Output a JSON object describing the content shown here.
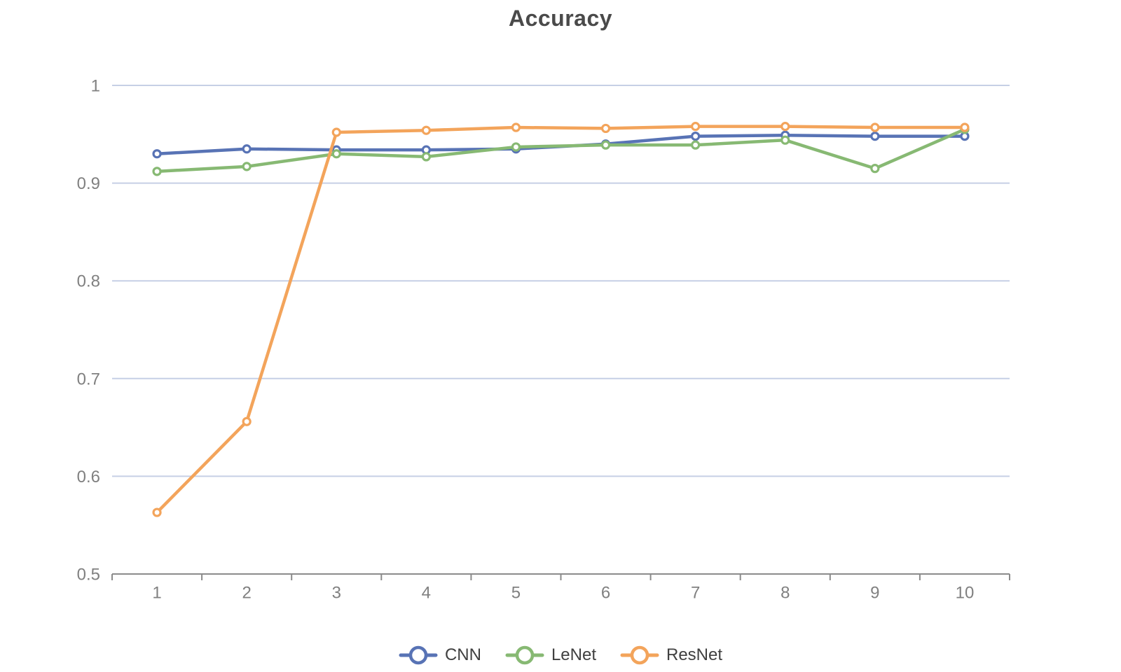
{
  "title": "Accuracy",
  "chart_data": {
    "type": "line",
    "title": "Accuracy",
    "xlabel": "",
    "ylabel": "",
    "categories": [
      "1",
      "2",
      "3",
      "4",
      "5",
      "6",
      "7",
      "8",
      "9",
      "10"
    ],
    "series": [
      {
        "name": "CNN",
        "color": "#5873b5",
        "values": [
          0.93,
          0.935,
          0.934,
          0.934,
          0.935,
          0.94,
          0.948,
          0.949,
          0.948,
          0.948
        ]
      },
      {
        "name": "LeNet",
        "color": "#87b973",
        "values": [
          0.912,
          0.917,
          0.93,
          0.927,
          0.937,
          0.939,
          0.939,
          0.944,
          0.915,
          0.955
        ]
      },
      {
        "name": "ResNet",
        "color": "#f3a45b",
        "values": [
          0.563,
          0.656,
          0.952,
          0.954,
          0.957,
          0.956,
          0.958,
          0.958,
          0.957,
          0.957
        ]
      }
    ],
    "ylim": [
      0.5,
      1.0
    ],
    "yticks": [
      {
        "value": 1.0,
        "label": "1"
      },
      {
        "value": 0.9,
        "label": "0.9"
      },
      {
        "value": 0.8,
        "label": "0.8"
      },
      {
        "value": 0.7,
        "label": "0.7"
      },
      {
        "value": 0.6,
        "label": "0.6"
      },
      {
        "value": 0.5,
        "label": "0.5"
      }
    ],
    "grid": true,
    "legend_position": "bottom",
    "marker": "empty-circle"
  },
  "colors": {
    "grid_line": "#c6cfe5",
    "axis_line": "#8b8b8b",
    "axis_text": "#808080",
    "title_text": "#4a4a4a",
    "legend_text": "#404040",
    "background": "#ffffff",
    "marker_fill": "#ffffff"
  }
}
